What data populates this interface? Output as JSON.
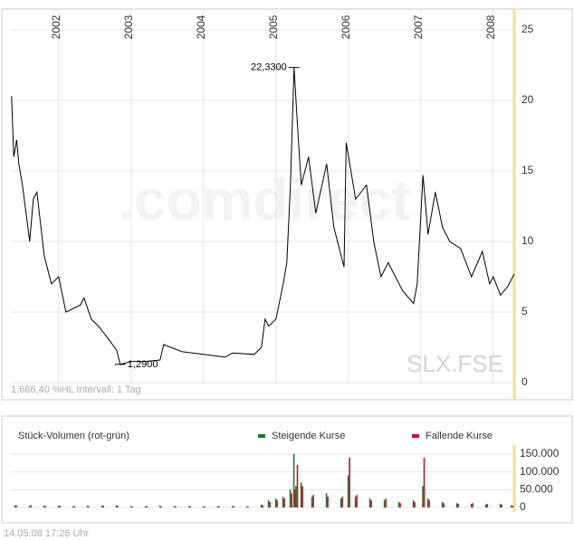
{
  "chart_data": [
    {
      "type": "line",
      "x": [
        2001.35,
        2001.38,
        2001.42,
        2001.45,
        2001.5,
        2001.6,
        2001.65,
        2001.7,
        2001.8,
        2001.9,
        2002.0,
        2002.1,
        2002.3,
        2002.35,
        2002.45,
        2002.55,
        2002.7,
        2002.8,
        2002.85,
        2003.0,
        2003.2,
        2003.4,
        2003.45,
        2003.7,
        2004.0,
        2004.3,
        2004.4,
        2004.7,
        2004.8,
        2004.85,
        2004.9,
        2005.0,
        2005.1,
        2005.15,
        2005.2,
        2005.25,
        2005.3,
        2005.35,
        2005.45,
        2005.55,
        2005.7,
        2005.8,
        2005.94,
        2005.97,
        2006.1,
        2006.25,
        2006.35,
        2006.45,
        2006.55,
        2006.75,
        2006.9,
        2006.95,
        2007.03,
        2007.1,
        2007.2,
        2007.3,
        2007.4,
        2007.55,
        2007.7,
        2007.85,
        2007.95,
        2008.0,
        2008.1,
        2008.2,
        2008.29
      ],
      "series": [
        {
          "color": "#000000",
          "values": [
            20.3,
            16,
            17.2,
            15.5,
            14,
            10,
            13,
            13.5,
            9,
            7,
            7.5,
            5,
            5.5,
            6,
            4.5,
            4,
            3,
            2.3,
            1.29,
            1.5,
            1.5,
            1.6,
            2.7,
            2.2,
            2,
            1.8,
            2.1,
            2,
            2.5,
            4.5,
            4,
            4.5,
            7,
            8.5,
            14,
            22.33,
            18,
            14,
            16,
            12,
            15.5,
            11,
            8.2,
            17,
            13,
            14,
            10,
            7.5,
            8.5,
            6.5,
            5.6,
            7,
            14.7,
            10.5,
            13.5,
            11,
            10,
            9.5,
            7.5,
            9.3,
            7,
            7.5,
            6.2,
            6.8,
            7.7
          ]
        }
      ],
      "xlim": [
        2001.34,
        2008.29
      ],
      "xticks": [
        2002,
        2003,
        2004,
        2005,
        2006,
        2007,
        2008
      ],
      "ylim": [
        0,
        25
      ],
      "yticks": [
        0,
        5,
        10,
        15,
        20,
        25
      ],
      "grid": true,
      "annotations": [
        {
          "text": "22,3300",
          "x": 2005.25,
          "y": 22.33
        },
        {
          "text": "1,2900",
          "x": 2002.85,
          "y": 1.29
        }
      ],
      "watermark": ".comdirect",
      "symbol": "SLX.FSE",
      "note": "1.686,40 %HL Intervall: 1 Tag"
    },
    {
      "type": "bar",
      "title": "Stück-Volumen (rot-grün)",
      "x": [
        2001.4,
        2001.6,
        2001.8,
        2002.0,
        2002.2,
        2002.4,
        2002.6,
        2002.8,
        2003.0,
        2003.2,
        2003.4,
        2003.6,
        2003.8,
        2004.0,
        2004.2,
        2004.4,
        2004.6,
        2004.8,
        2004.9,
        2005.0,
        2005.1,
        2005.2,
        2005.25,
        2005.28,
        2005.35,
        2005.5,
        2005.7,
        2005.9,
        2006.0,
        2006.1,
        2006.3,
        2006.5,
        2006.7,
        2006.9,
        2007.03,
        2007.1,
        2007.3,
        2007.5,
        2007.7,
        2007.9,
        2008.1,
        2008.25
      ],
      "series": [
        {
          "name": "Steigende Kurse",
          "color": "#1a7a2a",
          "values": [
            6000,
            4000,
            5000,
            4000,
            3000,
            5000,
            4000,
            6000,
            4000,
            3000,
            5000,
            4000,
            3000,
            3000,
            4000,
            3000,
            3000,
            8000,
            20000,
            25000,
            30000,
            50000,
            150000,
            60000,
            70000,
            30000,
            40000,
            25000,
            90000,
            30000,
            25000,
            20000,
            15000,
            20000,
            60000,
            25000,
            15000,
            12000,
            10000,
            8000,
            10000,
            6000
          ]
        },
        {
          "name": "Fallende Kurse",
          "color": "#c8102e",
          "values": [
            5000,
            6000,
            4000,
            5000,
            4000,
            3000,
            5000,
            4000,
            3000,
            4000,
            3000,
            3000,
            4000,
            3000,
            3000,
            4000,
            3000,
            6000,
            15000,
            20000,
            25000,
            40000,
            50000,
            120000,
            60000,
            35000,
            30000,
            30000,
            140000,
            35000,
            20000,
            25000,
            12000,
            15000,
            140000,
            20000,
            12000,
            10000,
            12000,
            10000,
            8000,
            5000
          ]
        }
      ],
      "xlim": [
        2001.34,
        2008.29
      ],
      "ylim": [
        0,
        150000
      ],
      "yticks": [
        0,
        {
          "value": 50000,
          "label": "50.000"
        },
        {
          "value": 100000,
          "label": "100.000"
        },
        {
          "value": 150000,
          "label": "150.000"
        }
      ],
      "grid": true
    },
    {
      "footer": "14.05.08   17:26 Uhr"
    }
  ]
}
